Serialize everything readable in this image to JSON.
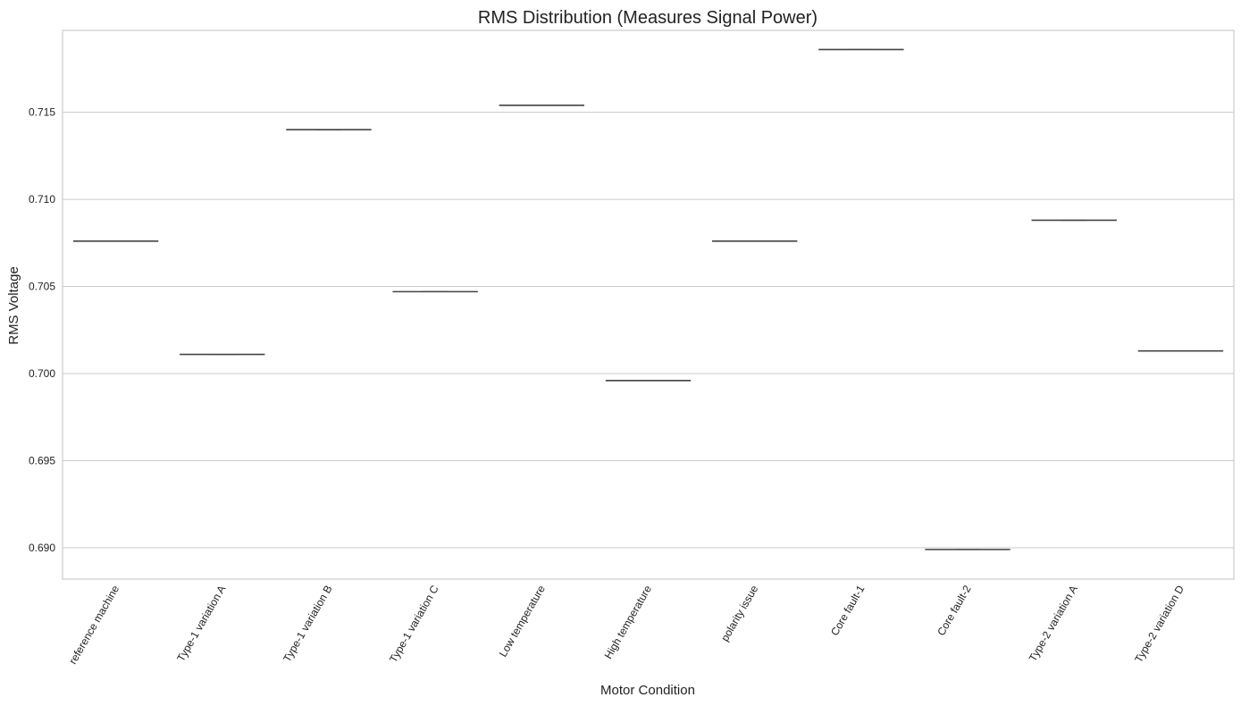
{
  "chart_data": {
    "type": "box",
    "title": "RMS Distribution (Measures Signal Power)",
    "xlabel": "Motor Condition",
    "ylabel": "RMS Voltage",
    "categories": [
      "reference machine",
      "Type-1 variation A",
      "Type-1 variation B",
      "Type-1 variation C",
      "Low temperature",
      "High temperature",
      "polarity issue",
      "Core fault-1",
      "Core fault-2",
      "Type-2 variation A",
      "Type-2 variation D"
    ],
    "values": [
      0.7076,
      0.7011,
      0.714,
      0.7047,
      0.7154,
      0.6996,
      0.7076,
      0.7186,
      0.6899,
      0.7088,
      0.7013
    ],
    "ylim": [
      0.6882,
      0.7197
    ],
    "yticks": [
      0.69,
      0.695,
      0.7,
      0.705,
      0.71,
      0.715
    ],
    "ytick_labels": [
      "0.690",
      "0.695",
      "0.700",
      "0.705",
      "0.710",
      "0.715"
    ],
    "grid": "horizontal",
    "box_color": "#444444",
    "grid_color": "#cccccc"
  }
}
